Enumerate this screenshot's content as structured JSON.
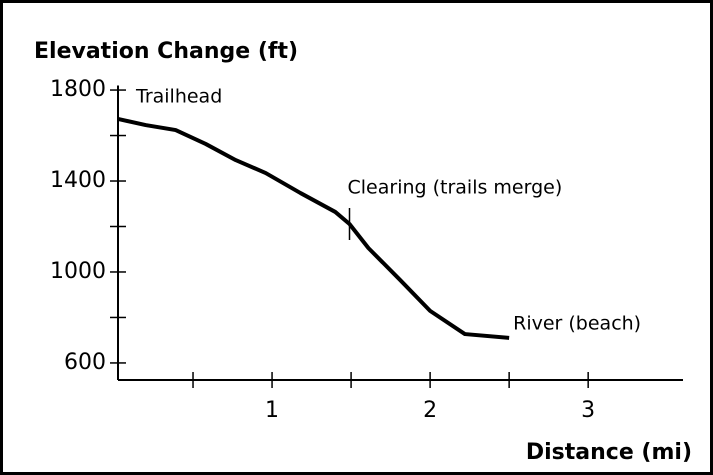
{
  "chart_data": {
    "type": "line",
    "title": "Elevation Change (ft)",
    "x_label": "Distance (mi)",
    "x": [
      0,
      0.2,
      0.39,
      0.58,
      0.77,
      0.96,
      1.18,
      1.4,
      1.49,
      1.61,
      1.81,
      2.0,
      2.22,
      2.5
    ],
    "values": [
      1673,
      1646,
      1624,
      1563,
      1492,
      1435,
      1347,
      1264,
      1211,
      1105,
      965,
      829,
      727,
      710
    ],
    "color": "#000000",
    "xlim": [
      0,
      3.6
    ],
    "xticks": [
      1,
      2,
      3
    ],
    "xticks_minor": [
      0.5,
      1.5,
      2.5
    ],
    "ylim": [
      525,
      1820
    ],
    "yticks": [
      600,
      1000,
      1400,
      1800
    ],
    "yticks_minor": [
      800,
      1200,
      1600
    ],
    "annotations": [
      "Trailhead",
      "Clearing (trails merge)",
      "River (beach)"
    ]
  }
}
